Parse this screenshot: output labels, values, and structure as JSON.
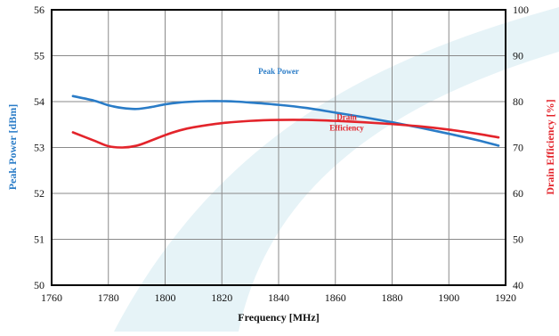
{
  "chart_data": {
    "type": "line",
    "xlabel": "Frequency [MHz]",
    "ylabel_left": "Peak Power [dBm]",
    "ylabel_right": "Drain Efficiency [%]",
    "xlim": [
      1760,
      1920
    ],
    "ylim_left": [
      50,
      56
    ],
    "ylim_right": [
      40,
      100
    ],
    "x_ticks": [
      1760,
      1780,
      1800,
      1820,
      1840,
      1860,
      1880,
      1900,
      1920
    ],
    "y_ticks_left": [
      50,
      51,
      52,
      53,
      54,
      55,
      56
    ],
    "y_ticks_right": [
      40,
      50,
      60,
      70,
      80,
      90,
      100
    ],
    "grid": true,
    "series": [
      {
        "name": "Peak Power",
        "axis": "left",
        "color": "#2a7cc7",
        "x": [
          1767.5,
          1775,
          1780,
          1785,
          1790,
          1795,
          1800,
          1805,
          1810,
          1815,
          1820,
          1825,
          1830,
          1840,
          1850,
          1860,
          1870,
          1880,
          1890,
          1900,
          1910,
          1917.5
        ],
        "y": [
          54.12,
          54.02,
          53.92,
          53.86,
          53.84,
          53.88,
          53.94,
          53.98,
          54.0,
          54.01,
          54.01,
          54.0,
          53.98,
          53.93,
          53.86,
          53.76,
          53.66,
          53.55,
          53.43,
          53.3,
          53.16,
          53.04
        ]
      },
      {
        "name": "Drain Efficiency",
        "axis": "right",
        "color": "#e3242b",
        "x": [
          1767.5,
          1775,
          1780,
          1785,
          1790,
          1795,
          1800,
          1805,
          1810,
          1820,
          1830,
          1840,
          1850,
          1860,
          1870,
          1880,
          1890,
          1900,
          1910,
          1917.5
        ],
        "y": [
          73.3,
          71.5,
          70.3,
          70.0,
          70.4,
          71.5,
          72.7,
          73.7,
          74.4,
          75.3,
          75.8,
          76.0,
          76.0,
          75.8,
          75.5,
          75.1,
          74.6,
          73.9,
          73.0,
          72.2
        ]
      }
    ],
    "annotations": [
      {
        "text": "Peak Power",
        "color": "#2a7cc7",
        "at_x": 1840,
        "at_y_left": 54.6
      },
      {
        "text": "Drain",
        "color": "#e3242b",
        "at_x": 1864,
        "at_y_left": 53.6
      },
      {
        "text": "Efficiency",
        "color": "#e3242b",
        "at_x": 1864,
        "at_y_left": 53.37
      }
    ],
    "watermark_color": "#e6f3f7"
  }
}
